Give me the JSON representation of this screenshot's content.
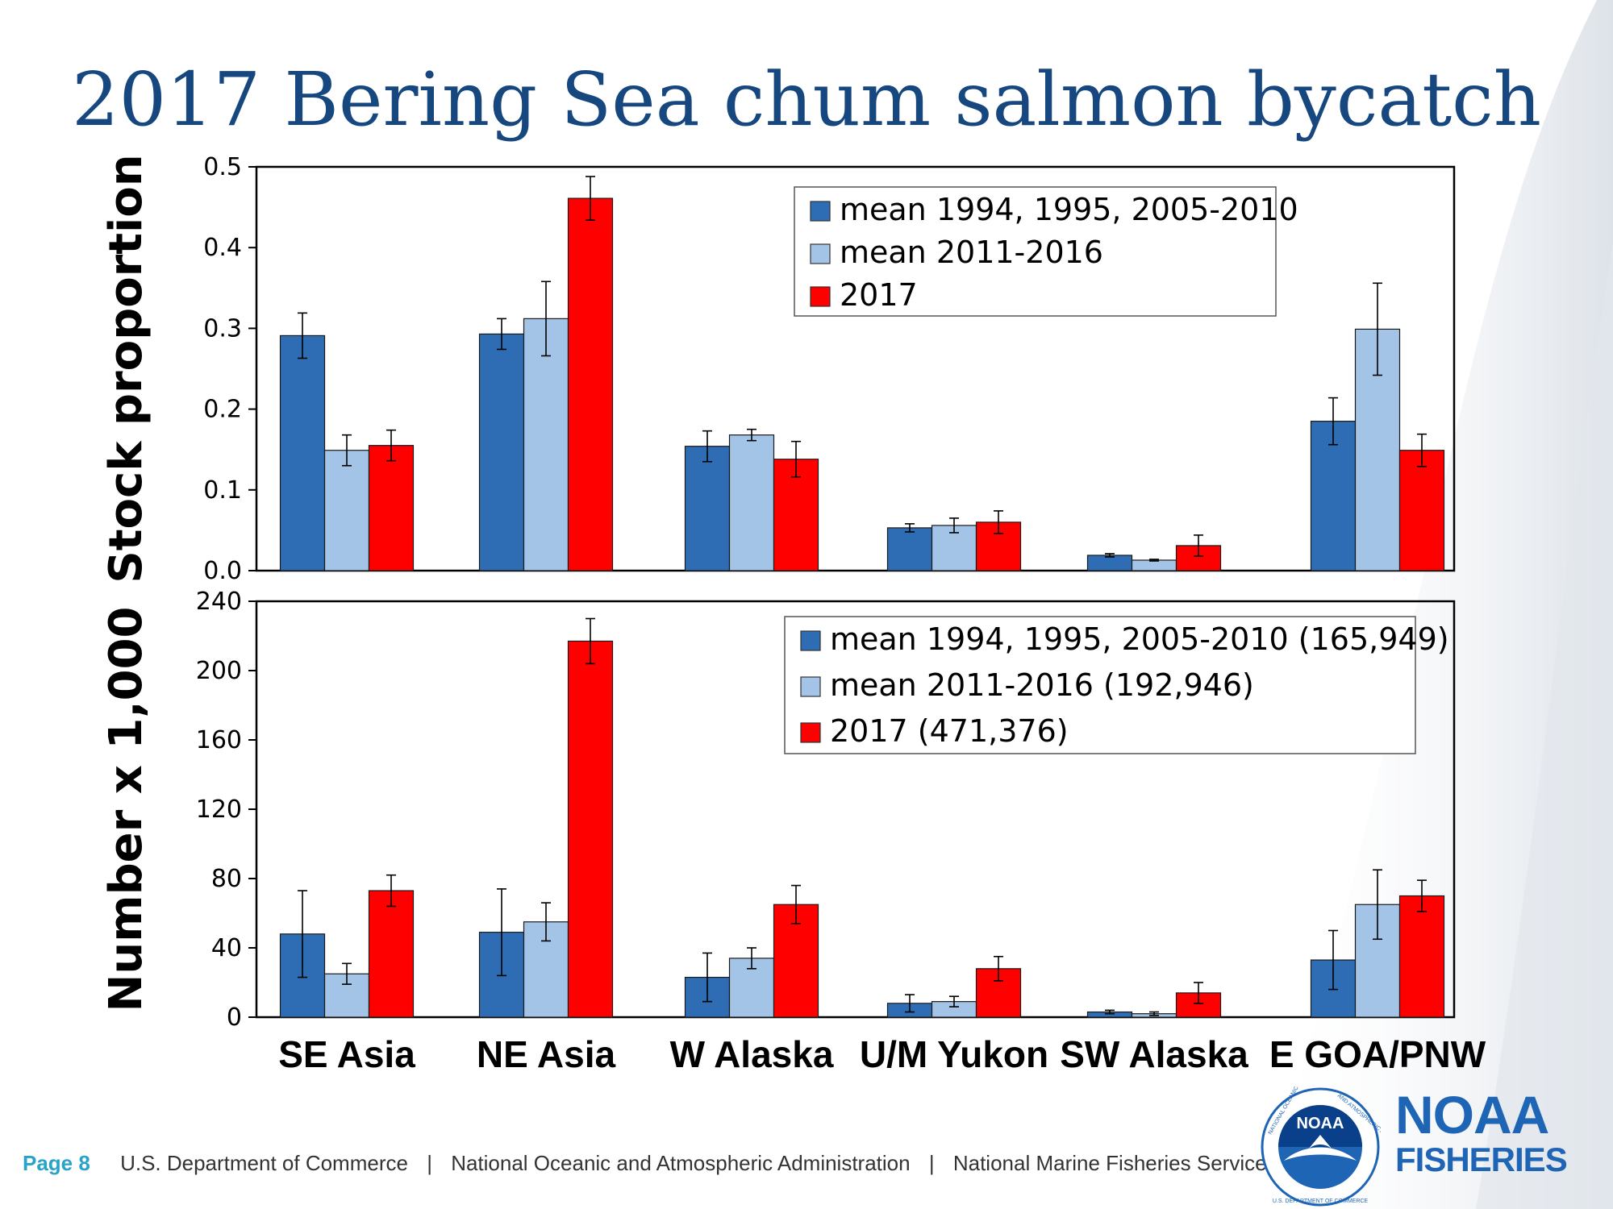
{
  "title": "2017 Bering Sea chum salmon bycatch",
  "footer": {
    "page": "Page 8",
    "org1": "U.S. Department of Commerce",
    "org2": "National Oceanic and Atmospheric Administration",
    "org3": "National Marine Fisheries Service",
    "separator": "|"
  },
  "brand": {
    "line1": "NOAA",
    "line2": "FISHERIES",
    "seal_text": "NOAA",
    "seal_ring_left": "NATIONAL OCEANIC",
    "seal_ring_right": "AND ATMOSPHERIC ADMINISTRATION",
    "seal_ring_bottom": "U.S. DEPARTMENT OF COMMERCE"
  },
  "colors": {
    "series_dark": "#2e6db4",
    "series_light": "#a3c4e6",
    "series_red": "#ff0000",
    "title": "#17477f",
    "page_number": "#29a3c8",
    "brand": "#1f65b5"
  },
  "chart_data": [
    {
      "type": "bar",
      "ylabel": "Stock proportion",
      "ylim": [
        0,
        0.5
      ],
      "yticks": [
        "0.0",
        "0.1",
        "0.2",
        "0.3",
        "0.4",
        "0.5"
      ],
      "ytick_values": [
        0,
        0.1,
        0.2,
        0.3,
        0.4,
        0.5
      ],
      "categories": [
        "SE Asia",
        "NE Asia",
        "W Alaska",
        "U/M Yukon",
        "SW Alaska",
        "E GOA/PNW"
      ],
      "legend_position": "top-center",
      "series": [
        {
          "name": "mean 1994, 1995, 2005-2010",
          "color": "#2e6db4",
          "values": [
            0.291,
            0.293,
            0.154,
            0.053,
            0.019,
            0.185
          ],
          "errors": [
            0.028,
            0.019,
            0.019,
            0.005,
            0.002,
            0.029
          ]
        },
        {
          "name": "mean 2011-2016",
          "color": "#a3c4e6",
          "values": [
            0.149,
            0.312,
            0.168,
            0.056,
            0.013,
            0.299
          ],
          "errors": [
            0.019,
            0.046,
            0.007,
            0.009,
            0.001,
            0.057
          ]
        },
        {
          "name": "2017",
          "color": "#ff0000",
          "values": [
            0.155,
            0.461,
            0.138,
            0.06,
            0.031,
            0.149
          ],
          "errors": [
            0.019,
            0.027,
            0.022,
            0.014,
            0.013,
            0.02
          ]
        }
      ]
    },
    {
      "type": "bar",
      "ylabel": "Number x 1,000",
      "ylim": [
        0,
        240
      ],
      "yticks": [
        "0",
        "40",
        "80",
        "120",
        "160",
        "200",
        "240"
      ],
      "ytick_values": [
        0,
        40,
        80,
        120,
        160,
        200,
        240
      ],
      "categories": [
        "SE Asia",
        "NE Asia",
        "W Alaska",
        "U/M Yukon",
        "SW Alaska",
        "E GOA/PNW"
      ],
      "legend_position": "top-center",
      "series": [
        {
          "name": "mean 1994, 1995, 2005-2010 (165,949)",
          "color": "#2e6db4",
          "values": [
            48,
            49,
            23,
            8,
            3,
            33
          ],
          "errors": [
            25,
            25,
            14,
            5,
            1,
            17
          ]
        },
        {
          "name": "mean 2011-2016 (192,946)",
          "color": "#a3c4e6",
          "values": [
            25,
            55,
            34,
            9,
            2,
            65
          ],
          "errors": [
            6,
            11,
            6,
            3,
            1,
            20
          ]
        },
        {
          "name": "2017 (471,376)",
          "color": "#ff0000",
          "values": [
            73,
            217,
            65,
            28,
            14,
            70
          ],
          "errors": [
            9,
            13,
            11,
            7,
            6,
            9
          ]
        }
      ]
    }
  ]
}
